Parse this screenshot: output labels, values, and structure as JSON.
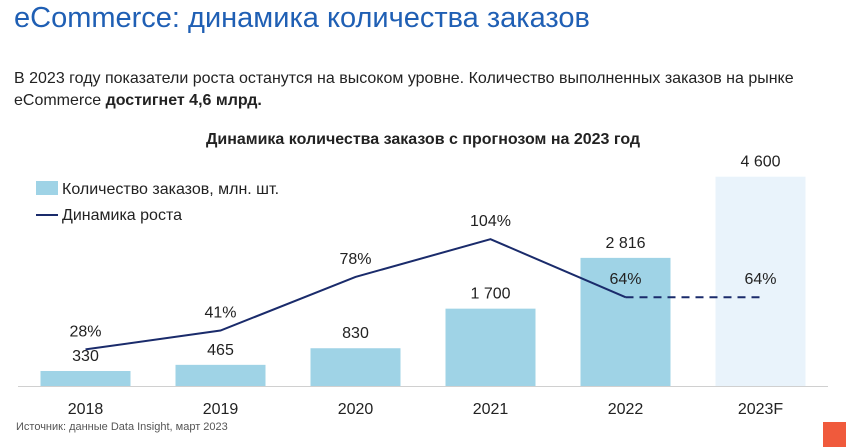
{
  "header": {
    "title": "eCommerce: динамика количества заказов"
  },
  "intro": {
    "text_plain": "В 2023 году показатели роста останутся на высоком уровне. Количество выполненных заказов на рынке eCommerce ",
    "text_bold": "достигнет 4,6 млрд."
  },
  "chart_data": {
    "type": "bar",
    "title": "Динамика количества заказов с прогнозом на 2023 год",
    "categories": [
      "2018",
      "2019",
      "2020",
      "2021",
      "2022",
      "2023F"
    ],
    "series": [
      {
        "name": "Количество заказов, млн. шт.",
        "type": "bar",
        "values": [
          330,
          465,
          830,
          1700,
          2816,
          4600
        ],
        "labels": [
          "330",
          "465",
          "830",
          "1 700",
          "2 816",
          "4 600"
        ],
        "color": "#9fd3e6",
        "forecast_color": "#e9f3fb"
      },
      {
        "name": "Динамика роста",
        "type": "line",
        "values": [
          28,
          41,
          78,
          104,
          64,
          64
        ],
        "labels": [
          "28%",
          "41%",
          "78%",
          "104%",
          "64%",
          "64%"
        ],
        "color": "#1a2b6b"
      }
    ],
    "forecast_from_index": 5,
    "legend_position": "top-left",
    "grid": false
  },
  "source": "Источник: данные Data Insight, март 2023"
}
